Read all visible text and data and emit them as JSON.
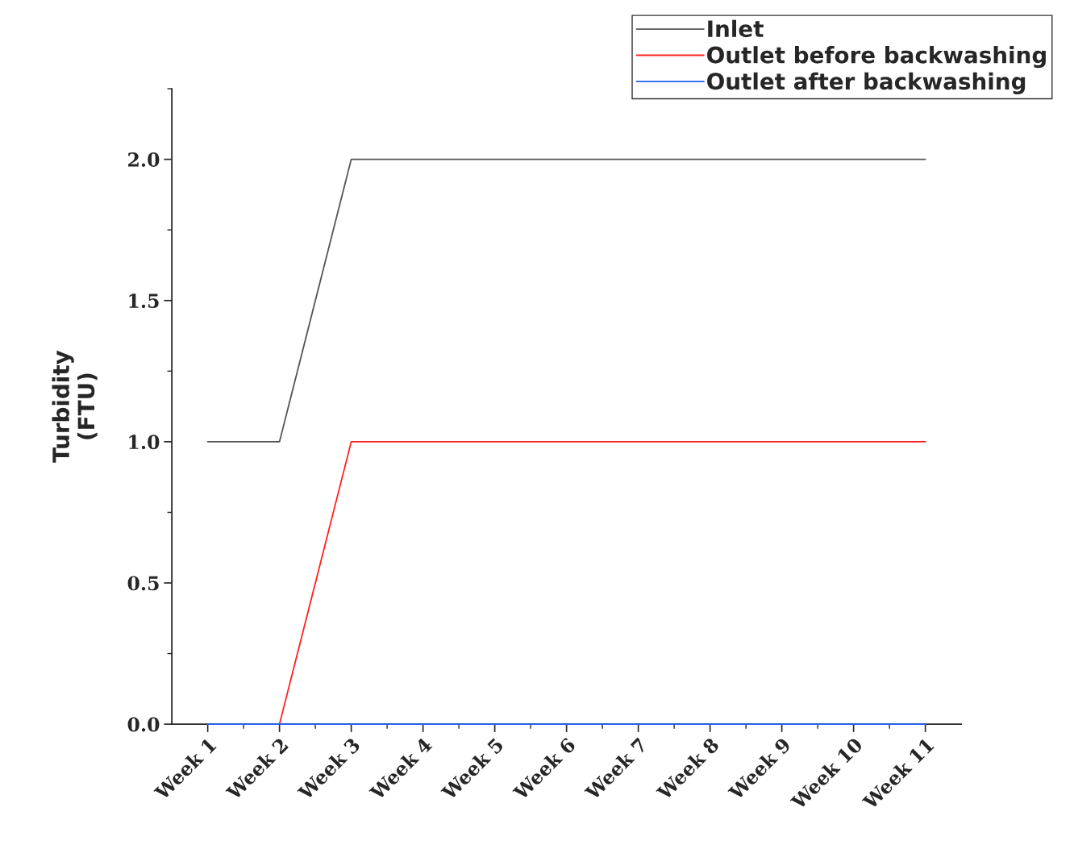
{
  "chart_data": {
    "type": "line",
    "ylabel": "Turbidity\n(FTU)",
    "categories": [
      "Week 1",
      "Week 2",
      "Week 3",
      "Week 4",
      "Week 5",
      "Week 6",
      "Week 7",
      "Week 8",
      "Week 9",
      "Week 10",
      "Week 11"
    ],
    "series": [
      {
        "name": "Inlet",
        "color": "#555555",
        "values": [
          1,
          1,
          2,
          2,
          2,
          2,
          2,
          2,
          2,
          2,
          2
        ]
      },
      {
        "name": "Outlet before backwashing",
        "color": "#ff2020",
        "values": [
          null,
          0,
          1,
          1,
          1,
          1,
          1,
          1,
          1,
          1,
          1
        ]
      },
      {
        "name": "Outlet after backwashing",
        "color": "#2060ff",
        "values": [
          0,
          0,
          0,
          0,
          0,
          0,
          0,
          0,
          0,
          0,
          0
        ]
      }
    ],
    "ylim": [
      0,
      2.25
    ],
    "yticks": [
      {
        "value": 0,
        "label": "0.0"
      },
      {
        "value": 0.5,
        "label": "0.5"
      },
      {
        "value": 1,
        "label": "1.0"
      },
      {
        "value": 1.5,
        "label": "1.5"
      },
      {
        "value": 2,
        "label": "2.0"
      }
    ],
    "grid": false,
    "legend": "top right",
    "marker": "none",
    "line_style": "solid"
  }
}
